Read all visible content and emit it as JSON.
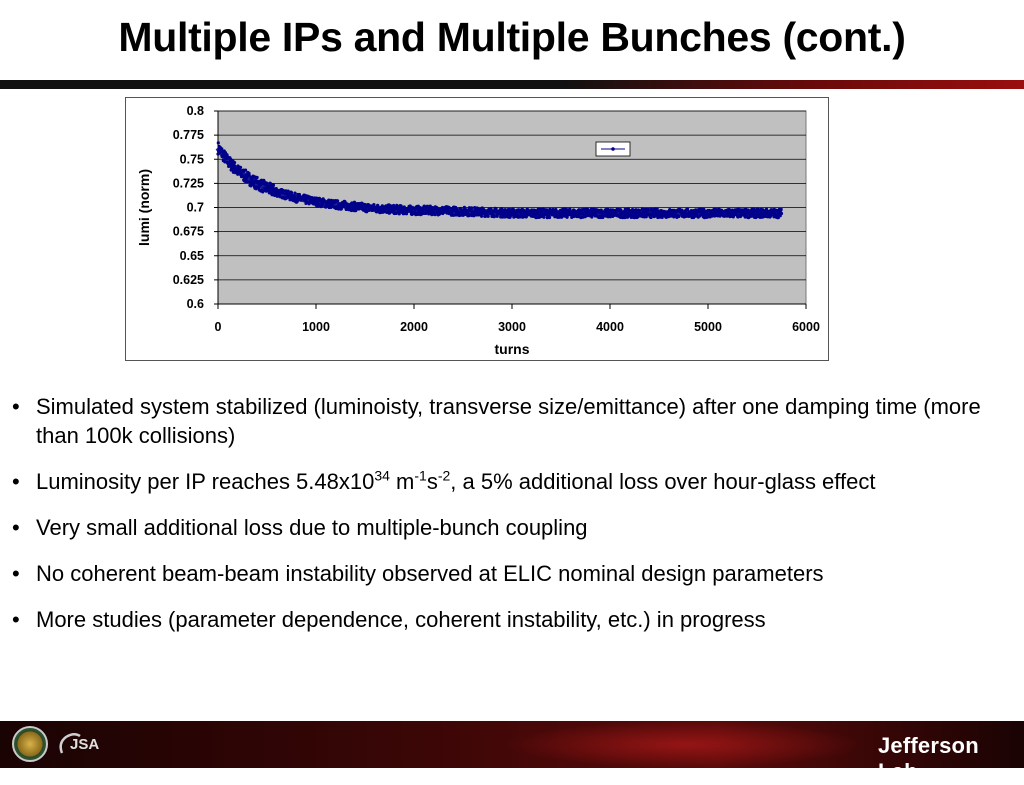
{
  "slide": {
    "title": "Multiple IPs and Multiple Bunches (cont.)"
  },
  "chart_data": {
    "type": "scatter",
    "title": "",
    "xlabel": "turns",
    "ylabel": "lumi (norm)",
    "xlim": [
      0,
      6000
    ],
    "ylim": [
      0.6,
      0.8
    ],
    "x_ticks": [
      "0",
      "1000",
      "2000",
      "3000",
      "4000",
      "5000",
      "6000"
    ],
    "y_ticks": [
      "0.8",
      "0.775",
      "0.75",
      "0.725",
      "0.7",
      "0.675",
      "0.65",
      "0.625",
      "0.6"
    ],
    "grid": "horizontal",
    "plot_background": "#c0c0c0",
    "series_color": "#00008b",
    "legend_placement": "top-right",
    "series": [
      {
        "name": "",
        "x": [
          0,
          50,
          100,
          150,
          200,
          300,
          400,
          500,
          600,
          700,
          800,
          1000,
          1200,
          1400,
          1600,
          1800,
          2000,
          2200,
          2500,
          2800,
          3000,
          3200,
          3500,
          3800,
          4000,
          4300,
          4600,
          5000,
          5300,
          5600,
          5750
        ],
        "y": [
          0.762,
          0.755,
          0.748,
          0.743,
          0.738,
          0.731,
          0.725,
          0.72,
          0.716,
          0.713,
          0.71,
          0.706,
          0.703,
          0.701,
          0.699,
          0.698,
          0.697,
          0.697,
          0.696,
          0.695,
          0.694,
          0.694,
          0.694,
          0.694,
          0.694,
          0.694,
          0.694,
          0.694,
          0.694,
          0.694,
          0.694
        ]
      }
    ]
  },
  "bullets": [
    {
      "marker": "•",
      "parts": [
        {
          "text": "Simulated system stabilized (luminoisty, transverse size/emittance) after one damping time (more than 100k collisions)"
        }
      ]
    },
    {
      "marker": "•",
      "parts": [
        {
          "text": "Luminosity per IP reaches 5.48x10"
        },
        {
          "text": "34",
          "sup": true
        },
        {
          "text": " m"
        },
        {
          "text": "-1",
          "sup": true
        },
        {
          "text": "s"
        },
        {
          "text": "-2",
          "sup": true
        },
        {
          "text": ", a 5% additional loss over hour-glass effect"
        }
      ]
    },
    {
      "marker": "•",
      "parts": [
        {
          "text": "Very small additional loss due to multiple-bunch coupling"
        }
      ]
    },
    {
      "marker": "•",
      "parts": [
        {
          "text": "No coherent beam-beam instability observed at ELIC nominal design parameters"
        }
      ]
    },
    {
      "marker": "•",
      "parts": [
        {
          "text": "More studies (parameter dependence, coherent instability, etc.) in progress"
        }
      ]
    }
  ],
  "footer": {
    "left_logo_text": "JSA",
    "right_logo_text": "Jefferson Lab"
  }
}
